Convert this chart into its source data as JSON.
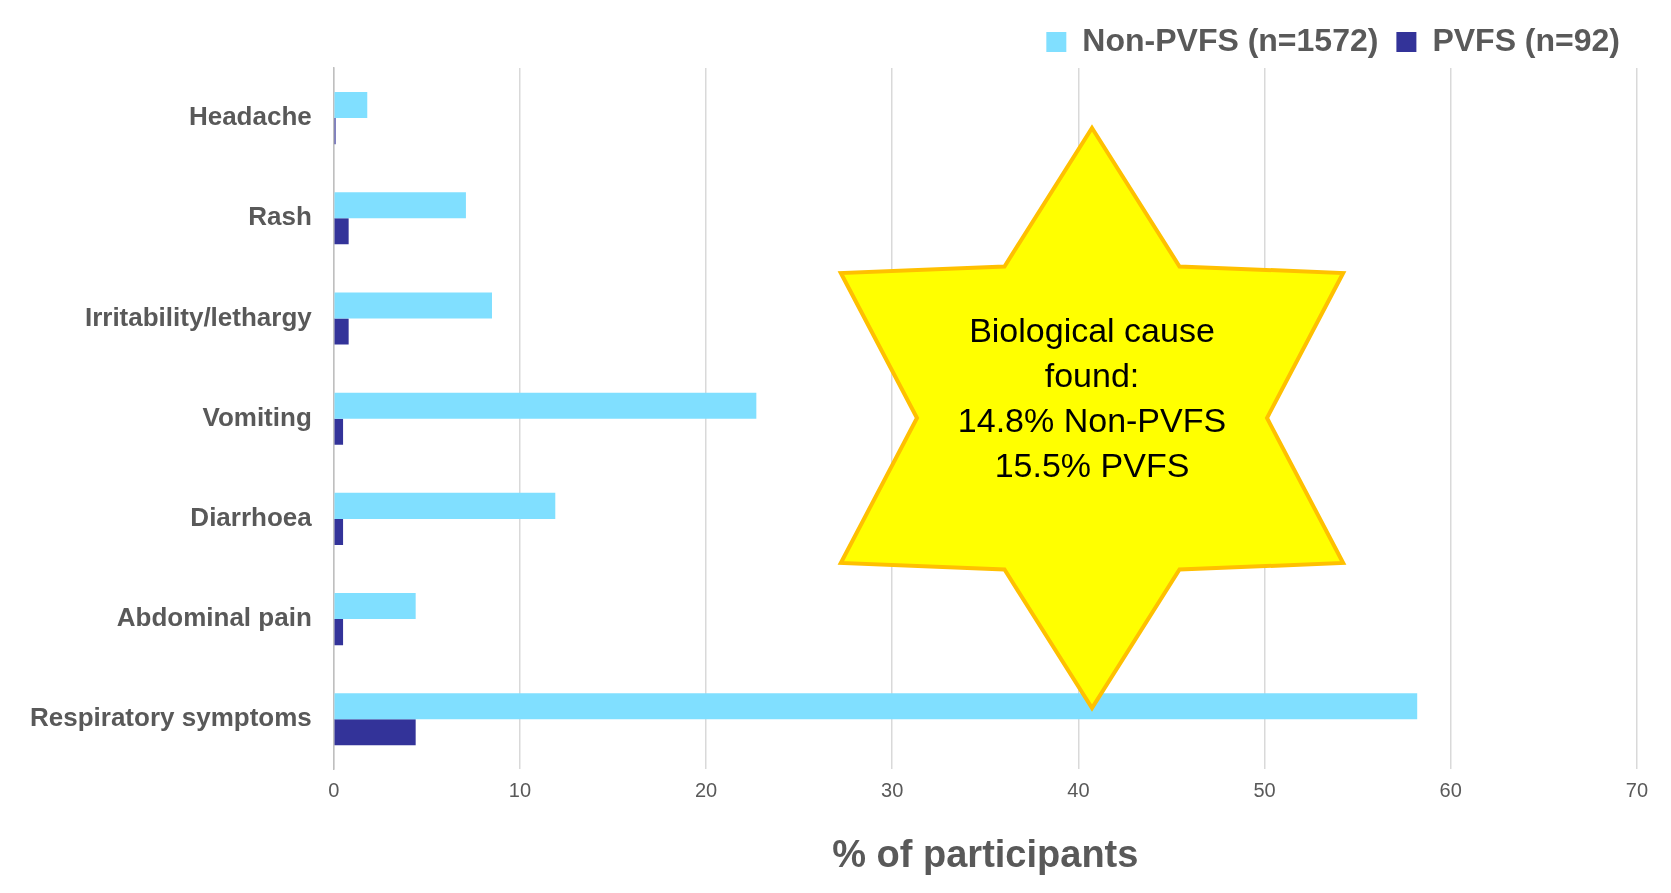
{
  "chart_data": {
    "type": "bar",
    "orientation": "horizontal",
    "xlabel": "% of participants",
    "categories": [
      "Headache",
      "Rash",
      "Irritability/lethargy",
      "Vomiting",
      "Diarrhoea",
      "Abdominal pain",
      "Respiratory symptoms"
    ],
    "series": [
      {
        "name": "Non-PVFS (n=1572)",
        "color": "#80dfff",
        "values": [
          1.8,
          7.1,
          8.5,
          22.7,
          11.9,
          4.4,
          58.2
        ]
      },
      {
        "name": "PVFS (n=92)",
        "color": "#333399",
        "values": [
          0.1,
          0.8,
          0.8,
          0.5,
          0.5,
          0.5,
          4.4
        ]
      }
    ],
    "xlim": [
      0,
      70
    ],
    "xticks": [
      0,
      10,
      20,
      30,
      40,
      50,
      60,
      70
    ],
    "grid": "x",
    "legend": "top right",
    "annotations": [
      "Biological cause found:\n14.8% Non-PVFS\n15.5% PVFS"
    ]
  }
}
